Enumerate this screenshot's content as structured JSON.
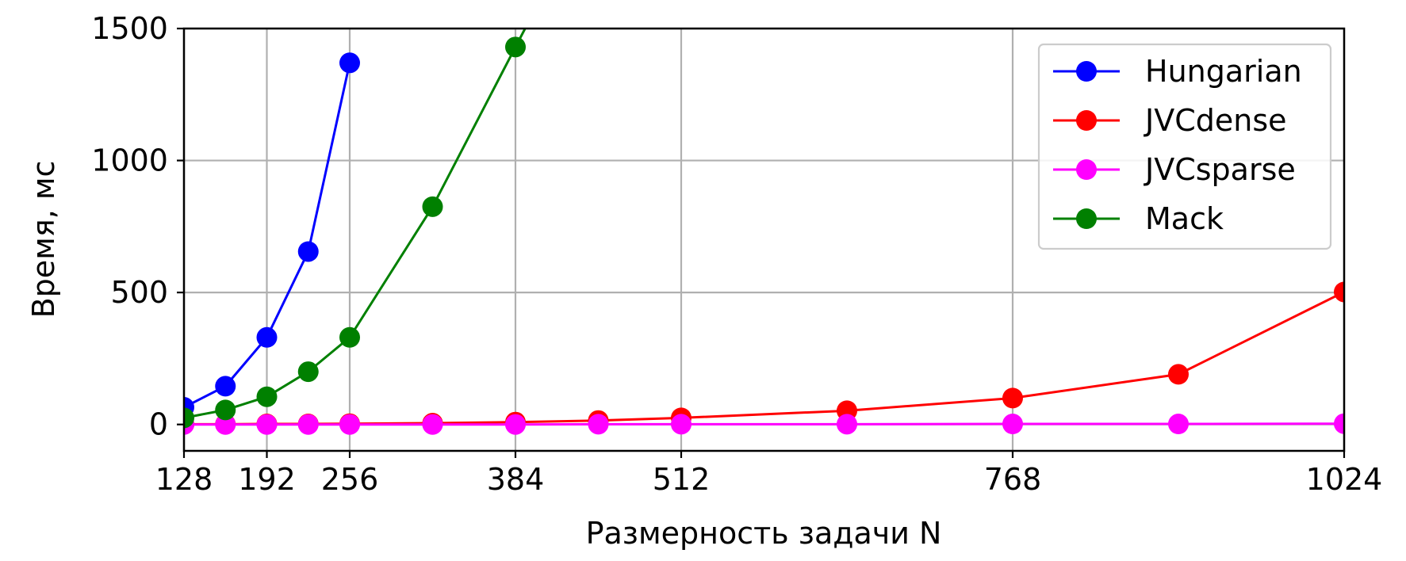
{
  "chart_data": {
    "type": "line",
    "xlabel": "Размерность задачи N",
    "ylabel": "Время, мс",
    "xlim": [
      128,
      1024
    ],
    "ylim": [
      -100,
      1500
    ],
    "xticks": [
      128,
      192,
      256,
      384,
      512,
      768,
      1024
    ],
    "yticks": [
      0,
      500,
      1000,
      1500
    ],
    "grid": true,
    "legend_position": "upper-right",
    "series": [
      {
        "name": "Hungarian",
        "color": "#0000ff",
        "x": [
          128,
          160,
          192,
          224,
          256
        ],
        "y": [
          65,
          145,
          330,
          655,
          1370
        ]
      },
      {
        "name": "JVCdense",
        "color": "#ff0000",
        "x": [
          128,
          160,
          192,
          224,
          256,
          320,
          384,
          448,
          512,
          640,
          768,
          896,
          1024
        ],
        "y": [
          1,
          1,
          2,
          2,
          3,
          5,
          9,
          15,
          25,
          52,
          100,
          190,
          502
        ]
      },
      {
        "name": "JVCsparse",
        "color": "#ff00ff",
        "x": [
          128,
          160,
          192,
          224,
          256,
          320,
          384,
          448,
          512,
          640,
          768,
          896,
          1024
        ],
        "y": [
          0,
          0,
          0,
          0,
          0,
          0,
          0,
          1,
          1,
          1,
          2,
          2,
          3
        ]
      },
      {
        "name": "Mack",
        "color": "#008000",
        "x": [
          128,
          160,
          192,
          224,
          256,
          320,
          384,
          400
        ],
        "y": [
          25,
          55,
          105,
          200,
          330,
          825,
          1430,
          1580
        ]
      }
    ]
  }
}
